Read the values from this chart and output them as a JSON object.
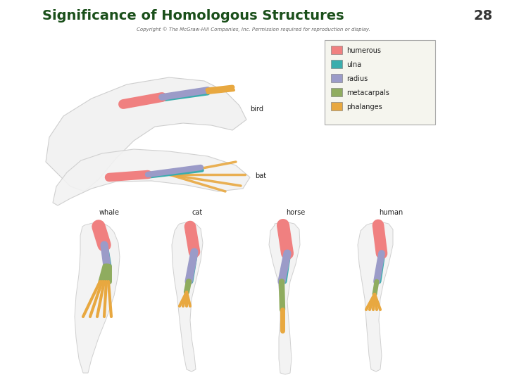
{
  "title": "Significance of Homologous Structures",
  "slide_number": "28",
  "copyright": "Copyright © The McGraw-Hill Companies, Inc. Permission required for reproduction or display.",
  "background_color": "#ffffff",
  "title_color": "#1a4f1a",
  "title_fontsize": 14,
  "slide_number_fontsize": 14,
  "legend_items": [
    {
      "label": "humerous",
      "color": "#f08080"
    },
    {
      "label": "ulna",
      "color": "#3aadad"
    },
    {
      "label": "radius",
      "color": "#9b9bc8"
    },
    {
      "label": "metacarpals",
      "color": "#8fac5f"
    },
    {
      "label": "phalanges",
      "color": "#e8a840"
    }
  ],
  "animal_labels": [
    "whale",
    "cat",
    "horse",
    "human"
  ],
  "wing_labels": [
    "bird",
    "bat"
  ],
  "copyright_fontsize": 5,
  "legend_fontsize": 7,
  "animal_label_fontsize": 7,
  "wing_label_fontsize": 7
}
